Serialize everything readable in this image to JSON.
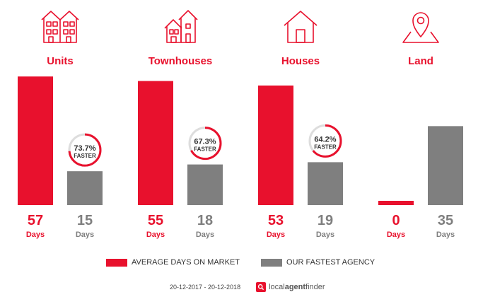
{
  "colors": {
    "primary": "#e8112d",
    "secondary": "#7f7f7f",
    "ring_track": "#dddddd"
  },
  "chart_data": {
    "type": "bar",
    "categories": [
      "Units",
      "Townhouses",
      "Houses",
      "Land"
    ],
    "icons": [
      "units-icon",
      "townhouses-icon",
      "houses-icon",
      "land-icon"
    ],
    "series": [
      {
        "name": "AVERAGE DAYS ON MARKET",
        "values": [
          57,
          55,
          53,
          0
        ],
        "color": "#e8112d"
      },
      {
        "name": "OUR FASTEST AGENCY",
        "values": [
          15,
          18,
          19,
          35
        ],
        "color": "#7f7f7f"
      }
    ],
    "value_unit": "Days",
    "faster": [
      {
        "percent": 73.7,
        "label": "73.7%",
        "text": "FASTER"
      },
      {
        "percent": 67.3,
        "label": "67.3%",
        "text": "FASTER"
      },
      {
        "percent": 64.2,
        "label": "64.2%",
        "text": "FASTER"
      },
      null
    ]
  },
  "legend": {
    "primary_label": "AVERAGE DAYS ON MARKET",
    "secondary_label": "OUR FASTEST AGENCY"
  },
  "footer": {
    "date_range": "20-12-2017 - 20-12-2018",
    "brand_part1": "local",
    "brand_part2": "agent",
    "brand_part3": "finder"
  }
}
